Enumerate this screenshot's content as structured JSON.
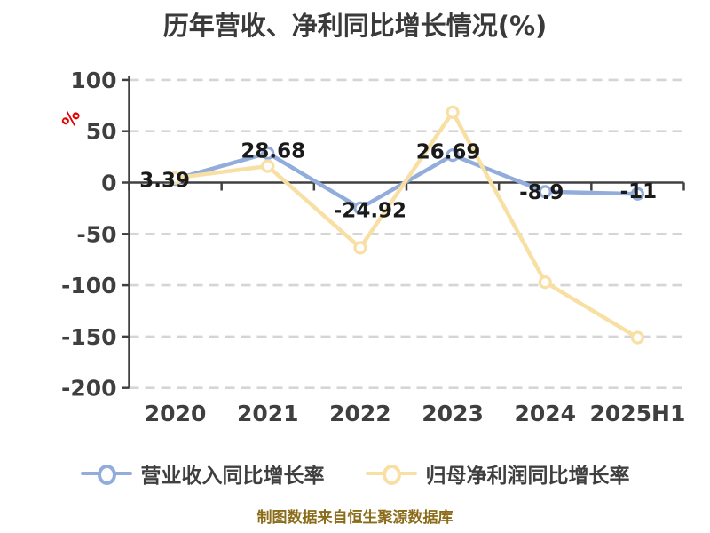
{
  "title": "历年营收、净利同比增长情况(%)",
  "caption": "制图数据来自恒生聚源数据库",
  "unit_label": {
    "text": "%",
    "color": "#e60000"
  },
  "colors": {
    "revenue_series": "#92addc",
    "profit_series": "#f8dfa4",
    "axis": "#404040",
    "grid": "#d5d5d5",
    "tick_label": "#3f3f3f",
    "data_label": "#1a1a1a",
    "title_text": "#3a3a3a",
    "caption_text": "#8b6c1a"
  },
  "legend": {
    "items": [
      {
        "label": "营业收入同比增长率",
        "color": "#92addc"
      },
      {
        "label": "归母净利润同比增长率",
        "color": "#f8dfa4"
      }
    ]
  },
  "chart_data": {
    "type": "line",
    "title": "历年营收、净利同比增长情况(%)",
    "categories": [
      "2020",
      "2021",
      "2022",
      "2023",
      "2024",
      "2025H1"
    ],
    "series": [
      {
        "name": "营业收入同比增长率",
        "color": "#92addc",
        "values": [
          3.39,
          28.68,
          -24.92,
          26.69,
          -8.9,
          -11
        ],
        "labels": [
          "3.39",
          "28.68",
          "-24.92",
          "26.69",
          "-8.9",
          "-11"
        ]
      },
      {
        "name": "归母净利润同比增长率",
        "color": "#f8dfa4",
        "values": [
          4.5,
          16,
          -63.5,
          68.5,
          -97,
          -151
        ],
        "labels": []
      }
    ],
    "ylabel": "%",
    "ylim": [
      -200,
      100
    ],
    "yticks": [
      100,
      50,
      0,
      -50,
      -100,
      -150,
      -200
    ],
    "grid": "dashed horizontal",
    "legend_position": "bottom"
  }
}
